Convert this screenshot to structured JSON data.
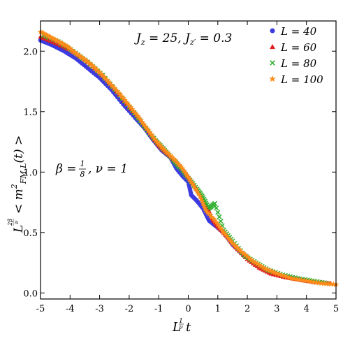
{
  "chart_data": {
    "type": "scatter",
    "title": "",
    "xlabel": "L^{1/ν} t",
    "ylabel": "L^{2β/ν} < m^2_{FM,L}(t) >",
    "xlim": [
      -5,
      5
    ],
    "ylim": [
      -0.05,
      2.25
    ],
    "x_ticks": [
      "-5",
      "-4",
      "-3",
      "-2",
      "-1",
      "0",
      "1",
      "2",
      "3",
      "4",
      "5"
    ],
    "y_ticks": [
      "0.0",
      "0.5",
      "1.0",
      "1.5",
      "2.0"
    ],
    "grid": false,
    "legend_position": "top-right",
    "annotations": {
      "params": "J_z = 25, J_{z'} = 0.3",
      "exponents": "β = 1/8, ν = 1"
    },
    "series": [
      {
        "name": "L = 40",
        "color": "#3b3be0",
        "marker": "circle",
        "x": [
          -5.0,
          -4.6,
          -4.2,
          -3.8,
          -3.4,
          -3.0,
          -2.6,
          -2.2,
          -1.8,
          -1.5,
          -1.2,
          -0.9,
          -0.6,
          -0.4,
          -0.2,
          0.0,
          0.1,
          0.3,
          0.5,
          0.7,
          0.9,
          1.2,
          1.5,
          1.8,
          2.1,
          2.4,
          2.8,
          3.2,
          3.6,
          4.0
        ],
        "y": [
          2.09,
          2.05,
          2.0,
          1.94,
          1.86,
          1.78,
          1.68,
          1.56,
          1.45,
          1.37,
          1.27,
          1.18,
          1.12,
          1.03,
          0.97,
          0.92,
          0.81,
          0.76,
          0.7,
          0.6,
          0.56,
          0.5,
          0.4,
          0.33,
          0.27,
          0.22,
          0.17,
          0.14,
          0.12,
          0.1
        ]
      },
      {
        "name": "L = 60",
        "color": "#e02020",
        "marker": "triangle",
        "x": [
          -5.0,
          -4.5,
          -4.0,
          -3.5,
          -3.0,
          -2.5,
          -2.0,
          -1.6,
          -1.3,
          -1.0,
          -0.7,
          -0.4,
          -0.1,
          0.2,
          0.4,
          0.6,
          0.8,
          1.0,
          1.3,
          1.6,
          2.0,
          2.4,
          2.8,
          3.3,
          3.8,
          4.3,
          4.8
        ],
        "y": [
          2.12,
          2.07,
          2.01,
          1.93,
          1.82,
          1.69,
          1.54,
          1.43,
          1.32,
          1.22,
          1.15,
          1.09,
          1.0,
          0.89,
          0.82,
          0.74,
          0.62,
          0.55,
          0.47,
          0.38,
          0.28,
          0.21,
          0.16,
          0.13,
          0.11,
          0.09,
          0.08
        ]
      },
      {
        "name": "L = 80",
        "color": "#30b030",
        "marker": "cross",
        "x": [
          -4.9,
          -4.4,
          -3.9,
          -3.4,
          -2.9,
          -2.4,
          -1.9,
          -1.5,
          -1.1,
          -0.8,
          -0.5,
          -0.3,
          0.0,
          0.3,
          0.5,
          0.7,
          0.9,
          1.2,
          1.5,
          1.9,
          2.3,
          2.7,
          3.2,
          3.7,
          4.2,
          4.7
        ],
        "y": [
          2.13,
          2.08,
          2.0,
          1.91,
          1.8,
          1.66,
          1.51,
          1.38,
          1.26,
          1.18,
          1.1,
          1.04,
          0.95,
          0.86,
          0.79,
          0.7,
          0.74,
          0.52,
          0.43,
          0.31,
          0.25,
          0.19,
          0.15,
          0.12,
          0.1,
          0.08
        ]
      },
      {
        "name": "L = 100",
        "color": "#ff8c1a",
        "marker": "star",
        "x": [
          -5.0,
          -4.7,
          -4.4,
          -4.1,
          -3.8,
          -3.5,
          -3.2,
          -2.9,
          -2.6,
          -2.3,
          -2.0,
          -1.7,
          -1.4,
          -1.1,
          -0.8,
          -0.5,
          -0.2,
          0.1,
          0.4,
          0.6,
          0.9,
          1.2,
          1.5,
          1.8,
          2.2,
          2.6,
          3.0,
          3.5,
          4.0,
          4.5,
          5.0
        ],
        "y": [
          2.16,
          2.12,
          2.08,
          2.04,
          1.98,
          1.93,
          1.87,
          1.8,
          1.72,
          1.64,
          1.55,
          1.46,
          1.36,
          1.26,
          1.18,
          1.11,
          1.03,
          0.92,
          0.8,
          0.68,
          0.6,
          0.5,
          0.41,
          0.34,
          0.26,
          0.2,
          0.16,
          0.12,
          0.1,
          0.08,
          0.07
        ]
      }
    ]
  }
}
